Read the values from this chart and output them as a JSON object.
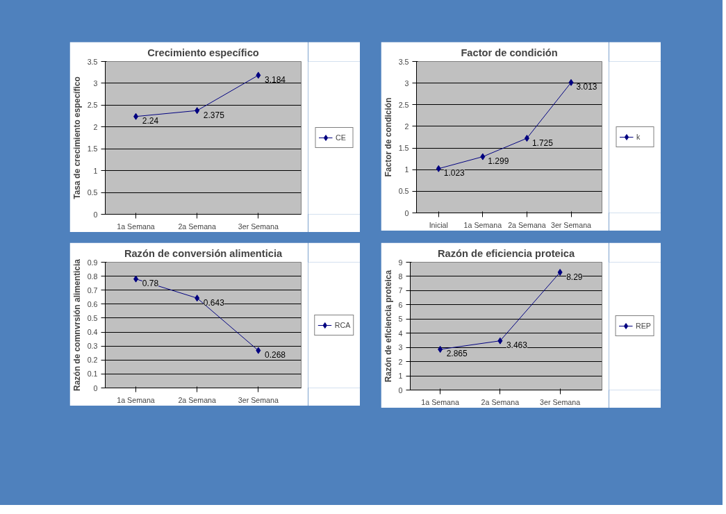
{
  "chart_data": [
    {
      "type": "line",
      "title": "Crecimiento específico",
      "ylabel": "Tasa de crecimiento específico",
      "categories": [
        "1a Semana",
        "2a Semana",
        "3er Semana"
      ],
      "series": [
        {
          "name": "CE",
          "color": "#000080",
          "values": [
            2.24,
            2.375,
            3.184
          ]
        }
      ],
      "ylim": [
        0,
        3.5
      ],
      "yticks": [
        0,
        0.5,
        1,
        1.5,
        2,
        2.5,
        3,
        3.5
      ],
      "grid": "y",
      "legend": "right",
      "marker": "diamond",
      "data_labels": true
    },
    {
      "type": "line",
      "title": "Factor de condición",
      "ylabel": "Factor de condición",
      "categories": [
        "Inicial",
        "1a Semana",
        "2a Semana",
        "3er Semana"
      ],
      "series": [
        {
          "name": "k",
          "color": "#000080",
          "values": [
            1.023,
            1.299,
            1.725,
            3.013
          ]
        }
      ],
      "ylim": [
        0,
        3.5
      ],
      "yticks": [
        0,
        0.5,
        1,
        1.5,
        2,
        2.5,
        3,
        3.5
      ],
      "grid": "y",
      "legend": "right",
      "marker": "diamond",
      "data_labels": true
    },
    {
      "type": "line",
      "title": "Razón de conversión alimenticia",
      "ylabel": "Razón de comnvrsión alimenticia",
      "categories": [
        "1a Semana",
        "2a Semana",
        "3er Semana"
      ],
      "series": [
        {
          "name": "RCA",
          "color": "#000080",
          "values": [
            0.78,
            0.643,
            0.268
          ]
        }
      ],
      "ylim": [
        0,
        0.9
      ],
      "yticks": [
        0,
        0.1,
        0.2,
        0.3,
        0.4,
        0.5,
        0.6,
        0.7,
        0.8,
        0.9
      ],
      "grid": "y",
      "legend": "right",
      "marker": "diamond",
      "data_labels": true
    },
    {
      "type": "line",
      "title": "Razón de eficiencia proteica",
      "ylabel": "Razón de eficiencia proteica",
      "categories": [
        "1a Semana",
        "2a Semana",
        "3er Semana"
      ],
      "series": [
        {
          "name": "REP",
          "color": "#000080",
          "values": [
            2.865,
            3.463,
            8.29
          ]
        }
      ],
      "ylim": [
        0,
        9
      ],
      "yticks": [
        0,
        1,
        2,
        3,
        4,
        5,
        6,
        7,
        8,
        9
      ],
      "grid": "y",
      "legend": "right",
      "marker": "diamond",
      "data_labels": true
    }
  ]
}
